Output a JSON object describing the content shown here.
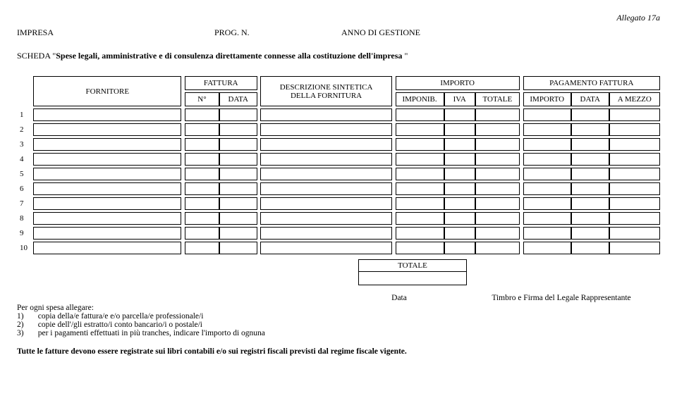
{
  "allegato": "Allegato 17a",
  "header": {
    "impresa_label": "IMPRESA",
    "prog_label": "PROG. N.",
    "anno_label": "ANNO DI GESTIONE"
  },
  "scheda": {
    "prefix": "SCHEDA \"",
    "bold": "Spese legali, amministrative e di consulenza direttamente connesse alla costituzione dell'impresa",
    "suffix": " \""
  },
  "table": {
    "headers": {
      "fornitore": "FORNITORE",
      "fattura": "FATTURA",
      "n": "N°",
      "data": "DATA",
      "descrizione_l1": "DESCRIZIONE SINTETICA",
      "descrizione_l2": "DELLA  FORNITURA",
      "importo": "IMPORTO",
      "imponib": "IMPONIB.",
      "iva": "IVA",
      "totale": "TOTALE",
      "pagamento": "PAGAMENTO FATTURA",
      "importo2": "IMPORTO",
      "data2": "DATA",
      "a_mezzo": "A MEZZO"
    },
    "rows": [
      "1",
      "2",
      "3",
      "4",
      "5",
      "6",
      "7",
      "8",
      "9",
      "10"
    ],
    "totale_label": "TOTALE"
  },
  "footer": {
    "data_label": "Data",
    "timbro_label": "Timbro e Firma del Legale Rappresentante",
    "per_ogni": "Per ogni spesa allegare:",
    "line1_num": "1)",
    "line1_txt": "copia della/e fattura/e e/o parcella/e professionale/i",
    "line2_num": "2)",
    "line2_txt": "copie dell'/gli estratto/i conto bancario/i o postale/i",
    "line3_num": "3)",
    "line3_txt": "per i pagamenti effettuati in più tranches, indicare l'importo di ognuna",
    "final": "Tutte le fatture devono essere registrate sui libri contabili e/o sui registri fiscali previsti dal regime fiscale vigente."
  }
}
